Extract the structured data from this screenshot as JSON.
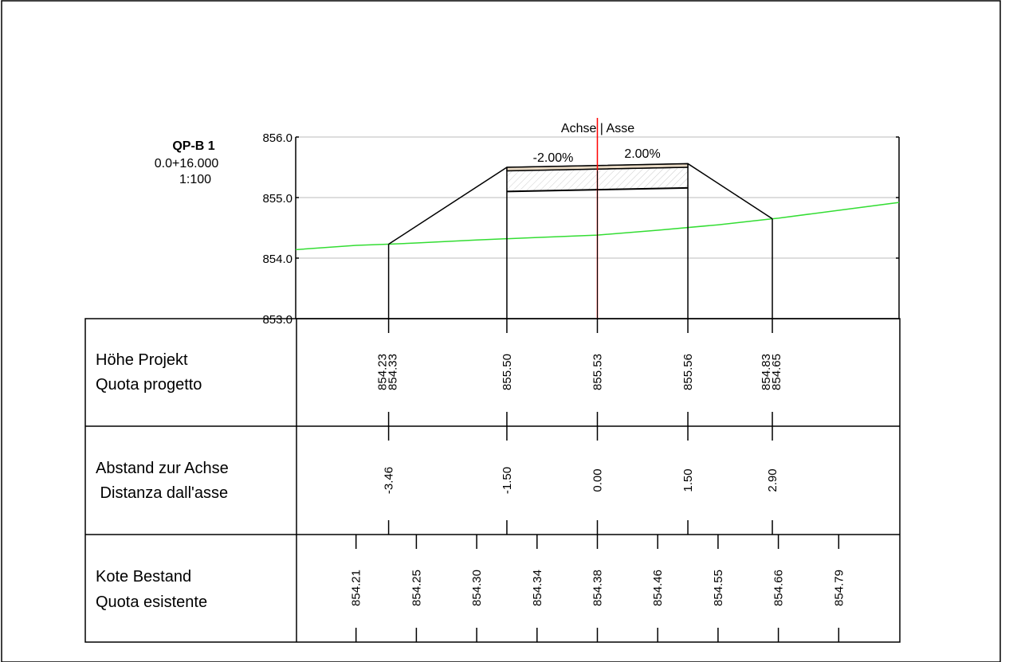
{
  "title_block": {
    "name": "QP-B 1",
    "station": "0.0+16.000",
    "scale": "1:100"
  },
  "axis_label": "Achse | Asse",
  "elevation_ticks": [
    "856.0",
    "855.0",
    "854.0",
    "853.0"
  ],
  "slopes": {
    "left": "-2.00%",
    "right": "2.00%"
  },
  "rows": [
    {
      "line1": "Höhe Projekt",
      "line2": "Quota progetto"
    },
    {
      "line1": "Abstand zur Achse",
      "line2": " Distanza dall'asse"
    },
    {
      "line1": "Kote Bestand",
      "line2": "Quota esistente"
    }
  ],
  "design_elevations": [
    {
      "offset": -3.46,
      "labels": [
        "854.23",
        "854.33"
      ]
    },
    {
      "offset": -1.5,
      "labels": [
        "855.50"
      ]
    },
    {
      "offset": 0.0,
      "labels": [
        "855.53"
      ]
    },
    {
      "offset": 1.5,
      "labels": [
        "855.56"
      ]
    },
    {
      "offset": 2.9,
      "labels": [
        "854.83",
        "854.65"
      ]
    }
  ],
  "axis_distances": [
    "-3.46",
    "-1.50",
    "0.00",
    "1.50",
    "2.90"
  ],
  "existing_levels": [
    {
      "offset": -4.0,
      "value": "854.21"
    },
    {
      "offset": -3.0,
      "value": "854.25"
    },
    {
      "offset": -2.0,
      "value": "854.30"
    },
    {
      "offset": -1.0,
      "value": "854.34"
    },
    {
      "offset": 0.0,
      "value": "854.38"
    },
    {
      "offset": 1.0,
      "value": "854.46"
    },
    {
      "offset": 2.0,
      "value": "854.55"
    },
    {
      "offset": 3.0,
      "value": "854.66"
    },
    {
      "offset": 4.0,
      "value": "854.79"
    }
  ],
  "chart_data": {
    "type": "line",
    "title": "QP-B 1",
    "xlabel": "",
    "ylabel": "",
    "ylim": [
      853.0,
      856.0
    ],
    "xlim": [
      -5.0,
      5.0
    ],
    "grid": true,
    "series": [
      {
        "values_x": [
          -5.0,
          -4.0,
          -3.46,
          -3.0,
          -2.0,
          -1.0,
          0.0,
          1.0,
          2.0,
          2.9,
          3.0,
          4.0,
          5.0
        ],
        "values_y": [
          854.14,
          854.21,
          854.23,
          854.25,
          854.3,
          854.34,
          854.38,
          854.46,
          854.55,
          854.65,
          854.66,
          854.79,
          854.92
        ]
      },
      {
        "values_x": [
          -3.46,
          -1.5,
          1.5,
          2.9
        ],
        "values_y": [
          854.23,
          855.5,
          855.56,
          854.65
        ]
      },
      {
        "values_x": [
          -1.5,
          0.0,
          1.5
        ],
        "values_y": [
          855.44,
          855.47,
          855.5
        ]
      },
      {
        "values_x": [
          -1.5,
          0.0,
          1.5
        ],
        "values_y": [
          855.1,
          855.13,
          855.16
        ]
      }
    ]
  },
  "colors": {
    "ground": "#33dd33",
    "axis": "#ff0000",
    "pavement": "#e8d9c4",
    "grid": "#bbbbbb",
    "frame": "#000000"
  }
}
